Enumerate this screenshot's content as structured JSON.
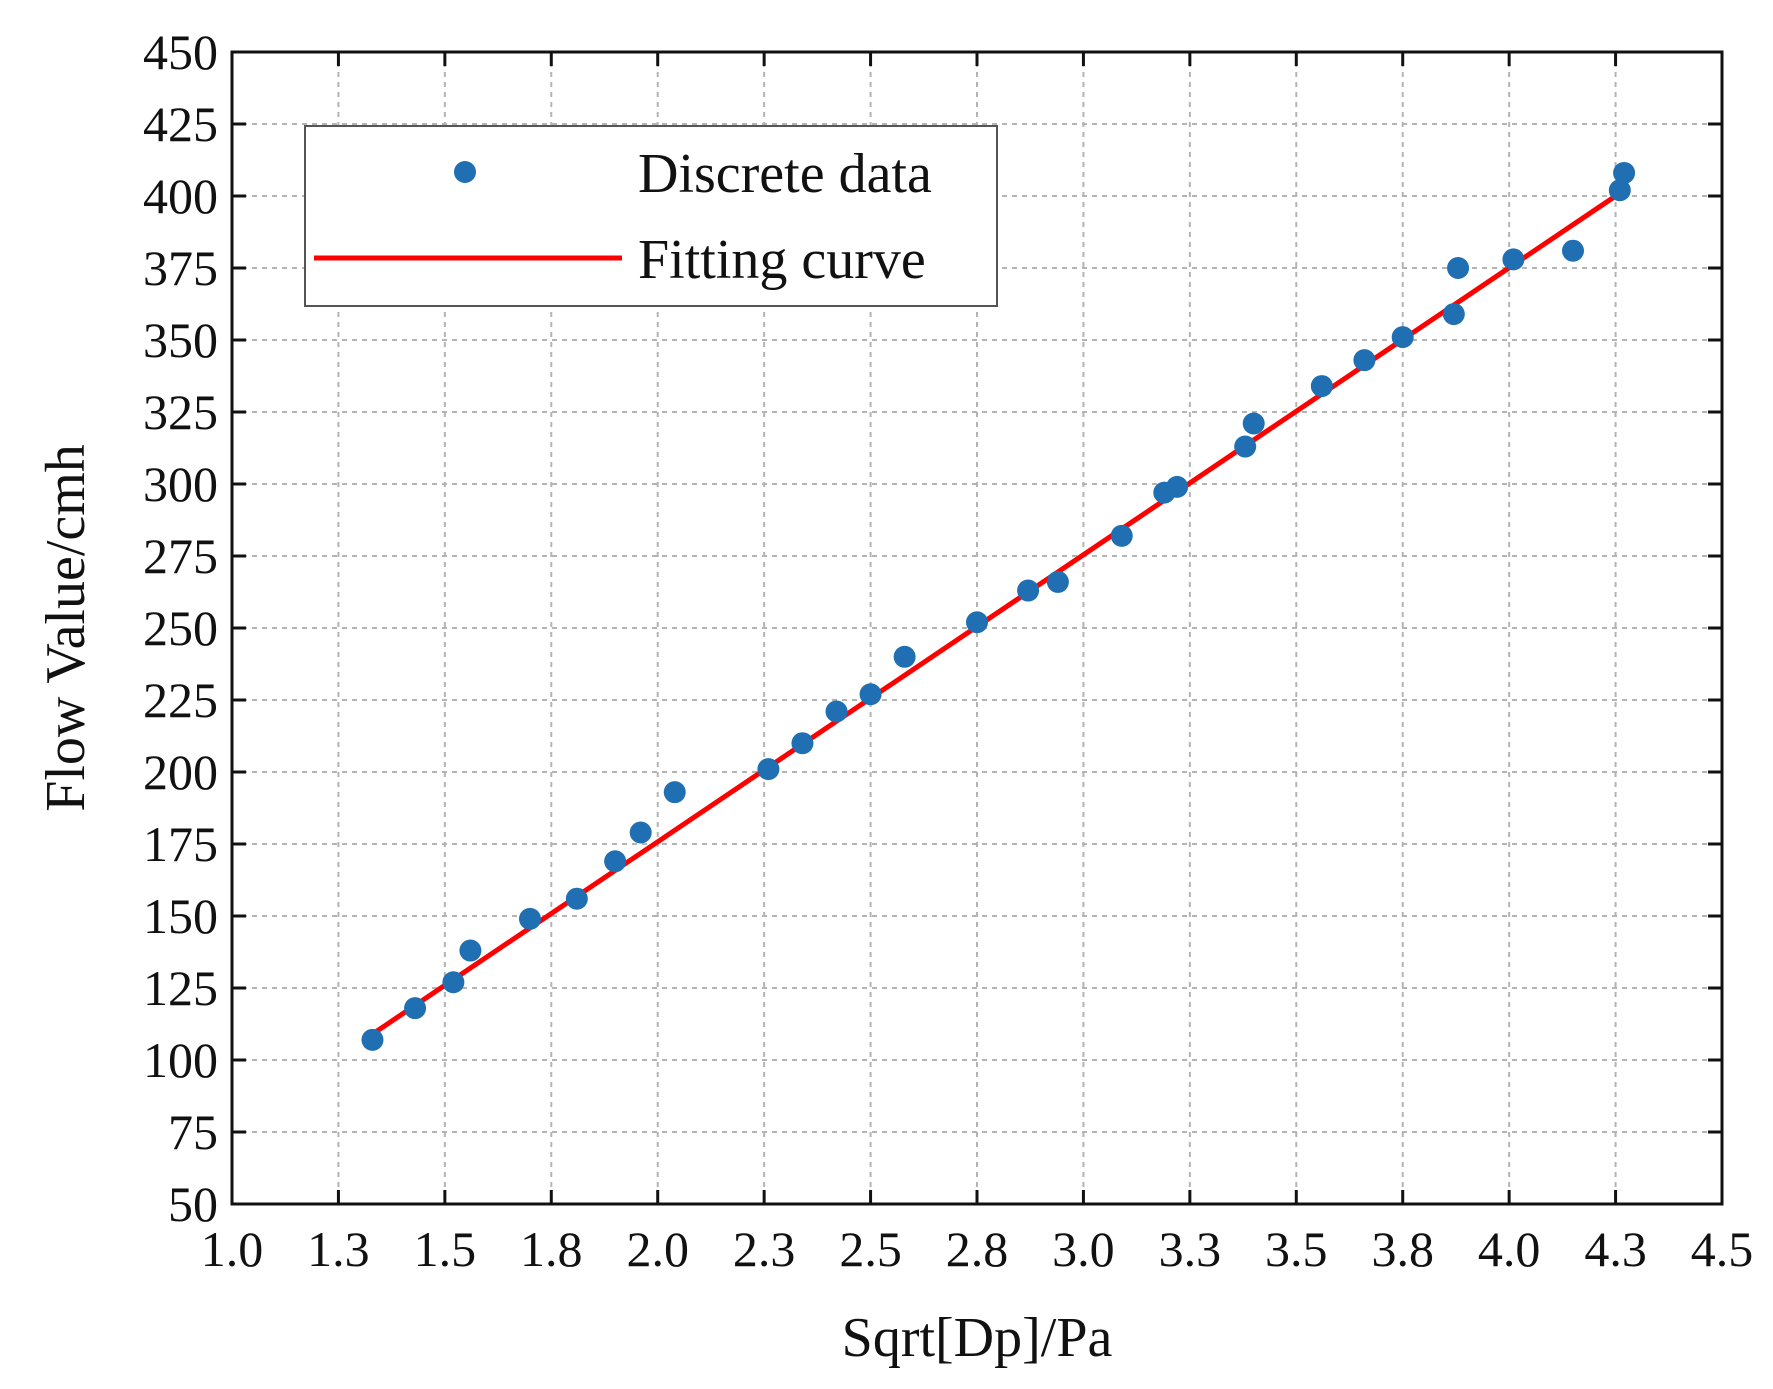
{
  "chart_data": {
    "type": "scatter",
    "title": "",
    "xlabel": "Sqrt[Dp]/Pa",
    "ylabel": "Flow Value/cmh",
    "xlim": [
      1.0,
      4.5
    ],
    "ylim": [
      50,
      450
    ],
    "grid": true,
    "x_ticks": [
      1.0,
      1.25,
      1.5,
      1.75,
      2.0,
      2.25,
      2.5,
      2.75,
      3.0,
      3.25,
      3.5,
      3.75,
      4.0,
      4.25,
      4.5
    ],
    "x_tick_labels": [
      "1.0",
      "1.3",
      "1.5",
      "1.8",
      "2.0",
      "2.3",
      "2.5",
      "2.8",
      "3.0",
      "3.3",
      "3.5",
      "3.8",
      "4.0",
      "4.3",
      "4.5"
    ],
    "y_ticks": [
      50,
      75,
      100,
      125,
      150,
      175,
      200,
      225,
      250,
      275,
      300,
      325,
      350,
      375,
      400,
      425,
      450
    ],
    "y_tick_labels": [
      "50",
      "75",
      "100",
      "125",
      "150",
      "175",
      "200",
      "225",
      "250",
      "275",
      "300",
      "325",
      "350",
      "375",
      "400",
      "425",
      "450"
    ],
    "legend_position": "top-left",
    "series": [
      {
        "name": "Discrete data",
        "kind": "scatter",
        "color": "#1f6fb2",
        "points": [
          [
            1.33,
            107
          ],
          [
            1.43,
            118
          ],
          [
            1.52,
            127
          ],
          [
            1.56,
            138
          ],
          [
            1.7,
            149
          ],
          [
            1.81,
            156
          ],
          [
            1.9,
            169
          ],
          [
            1.96,
            179
          ],
          [
            2.04,
            193
          ],
          [
            2.26,
            201
          ],
          [
            2.34,
            210
          ],
          [
            2.42,
            221
          ],
          [
            2.5,
            227
          ],
          [
            2.58,
            240
          ],
          [
            2.75,
            252
          ],
          [
            2.87,
            263
          ],
          [
            2.94,
            266
          ],
          [
            3.09,
            282
          ],
          [
            3.19,
            297
          ],
          [
            3.22,
            299
          ],
          [
            3.38,
            313
          ],
          [
            3.4,
            321
          ],
          [
            3.56,
            334
          ],
          [
            3.66,
            343
          ],
          [
            3.75,
            351
          ],
          [
            3.87,
            359
          ],
          [
            3.88,
            375
          ],
          [
            4.01,
            378
          ],
          [
            4.15,
            381
          ],
          [
            4.26,
            402
          ],
          [
            4.27,
            408
          ]
        ]
      },
      {
        "name": "Fitting curve",
        "kind": "line",
        "color": "#ff0000",
        "points": [
          [
            1.33,
            109
          ],
          [
            4.26,
            401
          ]
        ]
      }
    ]
  }
}
